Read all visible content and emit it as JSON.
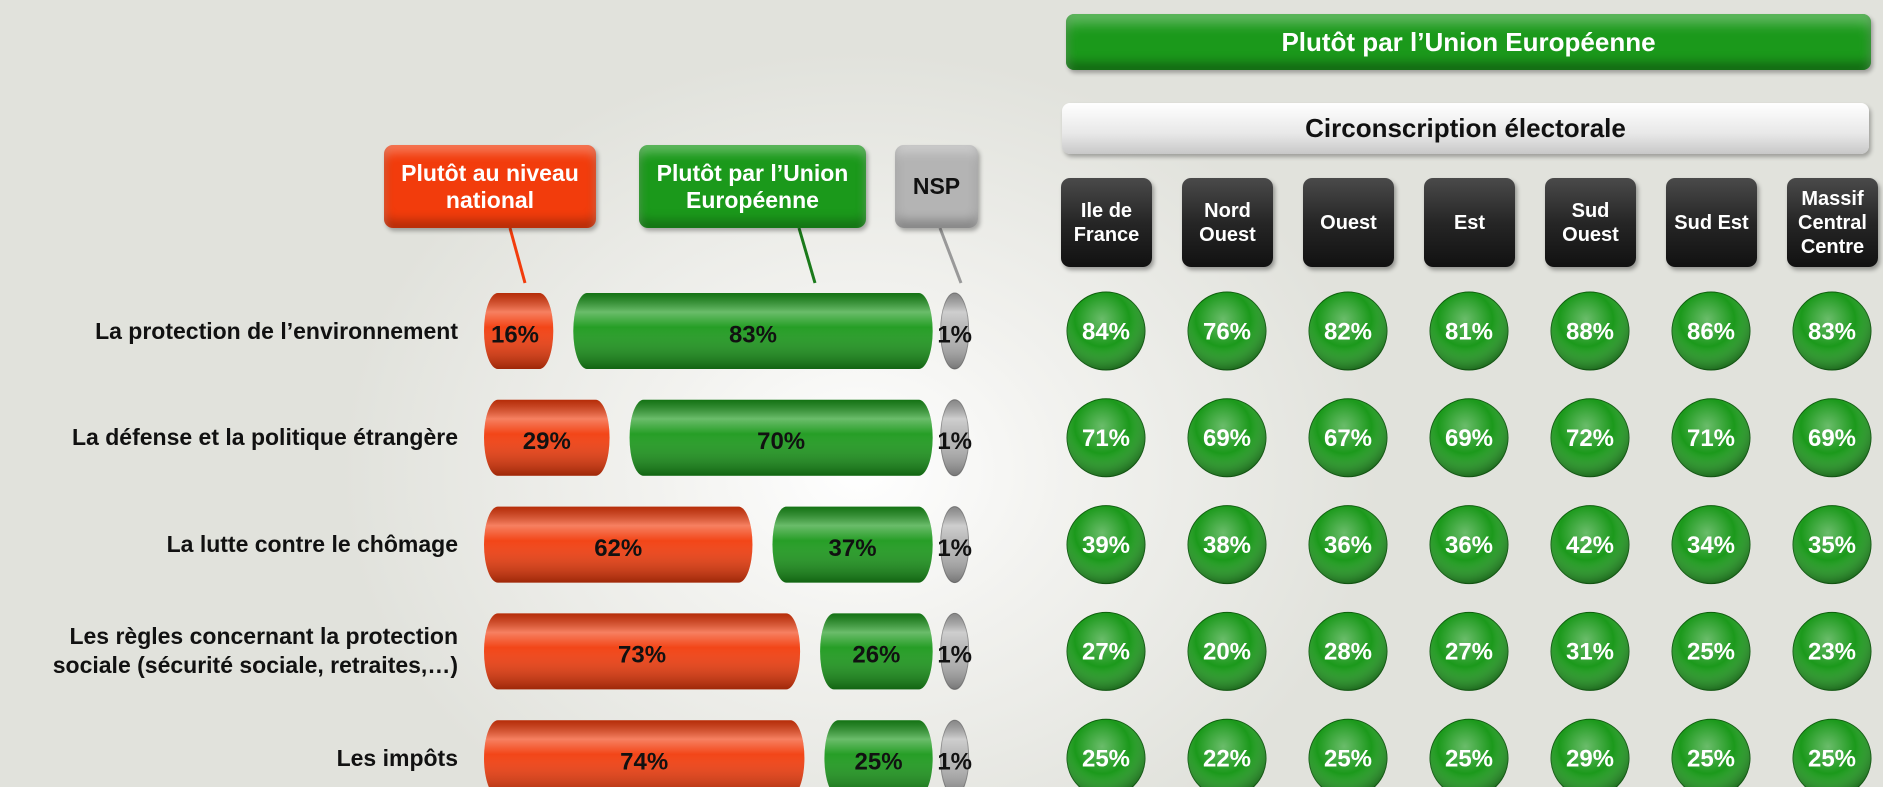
{
  "chart_data": [
    {
      "type": "bar",
      "orientation": "horizontal",
      "stacked": true,
      "categories": [
        "La protection de l’environnement",
        "La défense et la politique étrangère",
        "La lutte contre le chômage",
        "Les règles concernant la protection sociale (sécurité sociale, retraites,…)",
        "Les impôts"
      ],
      "series": [
        {
          "name": "Plutôt au niveau national",
          "color": "#f23c0c",
          "values": [
            16,
            29,
            62,
            73,
            74
          ],
          "value_labels": [
            "16%",
            "29%",
            "62%",
            "73%",
            "74%"
          ]
        },
        {
          "name": "Plutôt par l’Union Européenne",
          "color": "#1b991b",
          "values": [
            83,
            70,
            37,
            26,
            25
          ],
          "value_labels": [
            "83%",
            "70%",
            "37%",
            "26%",
            "25%"
          ]
        },
        {
          "name": "NSP",
          "color": "#b4b4b4",
          "values": [
            1,
            1,
            1,
            1,
            1
          ],
          "value_labels": [
            "1%",
            "1%",
            "1%",
            "1%",
            "1%"
          ]
        }
      ]
    },
    {
      "type": "table",
      "title": "Plutôt par l’Union Européenne",
      "subtitle": "Circonscription électorale",
      "color": "#1b991b",
      "columns": [
        "Ile de France",
        "Nord Ouest",
        "Ouest",
        "Est",
        "Sud Ouest",
        "Sud Est",
        "Massif Central Centre"
      ],
      "rows": [
        [
          84,
          76,
          82,
          81,
          88,
          86,
          83
        ],
        [
          71,
          69,
          67,
          69,
          72,
          71,
          69
        ],
        [
          39,
          38,
          36,
          36,
          42,
          34,
          35
        ],
        [
          27,
          20,
          28,
          27,
          31,
          25,
          23
        ],
        [
          25,
          22,
          25,
          25,
          29,
          25,
          25
        ]
      ],
      "value_labels": [
        [
          "84%",
          "76%",
          "82%",
          "81%",
          "88%",
          "86%",
          "83%"
        ],
        [
          "71%",
          "69%",
          "67%",
          "69%",
          "72%",
          "71%",
          "69%"
        ],
        [
          "39%",
          "38%",
          "36%",
          "36%",
          "42%",
          "34%",
          "35%"
        ],
        [
          "27%",
          "20%",
          "28%",
          "27%",
          "31%",
          "25%",
          "23%"
        ],
        [
          "25%",
          "22%",
          "25%",
          "25%",
          "29%",
          "25%",
          "25%"
        ]
      ]
    }
  ]
}
